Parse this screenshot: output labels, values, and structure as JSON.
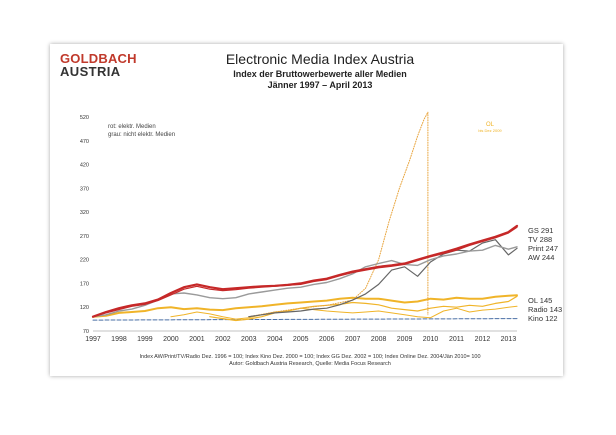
{
  "logo": {
    "line1": "GOLDBACH",
    "line2": "AUSTRIA"
  },
  "header": {
    "title": "Electronic Media Index Austria",
    "subtitle1": "Index der Bruttowerbewerte aller Medien",
    "subtitle2": "Jänner 1997 – April 2013"
  },
  "colors": {
    "elektr_rot": "#c62828",
    "grau": "#9a9a9a",
    "gold": "#f0b429",
    "dark_grey": "#666666",
    "online_dotted": "#e8a43c",
    "dashed_blue": "#4a6fa5"
  },
  "chart_data": {
    "type": "line",
    "title": "Electronic Media Index Austria",
    "x": [
      1997,
      1998,
      1999,
      2000,
      2001,
      2002,
      2003,
      2004,
      2005,
      2006,
      2007,
      2008,
      2009,
      2010,
      2011,
      2012,
      2013
    ],
    "x_labels": [
      "1997",
      "1998",
      "1999",
      "2000",
      "2001",
      "2002",
      "2003",
      "2004",
      "2005",
      "2006",
      "2007",
      "2008",
      "2009",
      "2010",
      "2011",
      "2012",
      "2013"
    ],
    "y_ticks": [
      70,
      120,
      170,
      220,
      270,
      320,
      370,
      420,
      470,
      520
    ],
    "ylim": [
      70,
      520
    ],
    "xlim": [
      1997,
      2013.33
    ],
    "legend_notes": [
      "rot: elektr. Medien",
      "grau: nicht elektr. Medien"
    ],
    "ol_annotation": {
      "label": "OL",
      "sublabel": "bis Dez 2009"
    },
    "series": [
      {
        "name": "GS",
        "end_label": "GS 291",
        "color_key": "elektr_rot",
        "style": "solid",
        "width": 2.2,
        "x": [
          1997,
          1997.5,
          1998,
          1998.5,
          1999,
          1999.5,
          2000,
          2000.5,
          2001,
          2001.5,
          2002,
          2002.5,
          2003,
          2003.5,
          2004,
          2004.5,
          2005,
          2005.5,
          2006,
          2006.5,
          2007,
          2007.5,
          2008,
          2008.5,
          2009,
          2009.5,
          2010,
          2010.5,
          2011,
          2011.5,
          2012,
          2012.5,
          2013,
          2013.33
        ],
        "y": [
          100,
          110,
          118,
          124,
          128,
          136,
          150,
          162,
          168,
          162,
          158,
          160,
          162,
          164,
          165,
          167,
          170,
          176,
          180,
          188,
          195,
          200,
          205,
          208,
          212,
          220,
          228,
          235,
          243,
          252,
          260,
          268,
          278,
          291
        ]
      },
      {
        "name": "TV",
        "end_label": "TV 288",
        "color_key": "elektr_rot",
        "style": "solid",
        "width": 1.2,
        "x": [
          1997,
          1997.5,
          1998,
          1998.5,
          1999,
          1999.5,
          2000,
          2000.5,
          2001,
          2001.5,
          2002,
          2002.5,
          2003,
          2003.5,
          2004,
          2004.5,
          2005,
          2005.5,
          2006,
          2006.5,
          2007,
          2007.5,
          2008,
          2008.5,
          2009,
          2009.5,
          2010,
          2010.5,
          2011,
          2011.5,
          2012,
          2012.5,
          2013,
          2013.33
        ],
        "y": [
          100,
          108,
          115,
          122,
          126,
          134,
          146,
          158,
          164,
          158,
          155,
          157,
          160,
          162,
          164,
          166,
          168,
          174,
          178,
          186,
          193,
          198,
          203,
          206,
          210,
          218,
          226,
          233,
          240,
          250,
          258,
          266,
          276,
          288
        ]
      },
      {
        "name": "Print",
        "end_label": "Print 247",
        "color_key": "grau",
        "style": "solid",
        "width": 1.4,
        "x": [
          1997,
          1997.5,
          1998,
          1998.5,
          1999,
          1999.5,
          2000,
          2000.5,
          2001,
          2001.5,
          2002,
          2002.5,
          2003,
          2003.5,
          2004,
          2004.5,
          2005,
          2005.5,
          2006,
          2006.5,
          2007,
          2007.5,
          2008,
          2008.5,
          2009,
          2009.5,
          2010,
          2010.5,
          2011,
          2011.5,
          2012,
          2012.5,
          2013,
          2013.33
        ],
        "y": [
          100,
          104,
          112,
          116,
          124,
          135,
          148,
          150,
          146,
          140,
          138,
          140,
          148,
          152,
          156,
          160,
          162,
          168,
          172,
          180,
          190,
          205,
          212,
          218,
          210,
          208,
          220,
          228,
          232,
          238,
          240,
          250,
          242,
          247
        ]
      },
      {
        "name": "AW",
        "end_label": "AW 244",
        "color_key": "dark_grey",
        "style": "solid",
        "width": 1.2,
        "x": [
          2003,
          2003.5,
          2004,
          2004.5,
          2005,
          2005.5,
          2006,
          2006.5,
          2007,
          2007.5,
          2008,
          2008.5,
          2009,
          2009.5,
          2010,
          2010.5,
          2011,
          2011.5,
          2012,
          2012.5,
          2013,
          2013.33
        ],
        "y": [
          100,
          104,
          108,
          110,
          112,
          116,
          118,
          125,
          135,
          148,
          168,
          198,
          205,
          185,
          215,
          232,
          240,
          238,
          255,
          262,
          230,
          244
        ]
      },
      {
        "name": "OL",
        "end_label": "OL 145",
        "color_key": "gold",
        "style": "solid",
        "width": 2.0,
        "x": [
          1997,
          1997.5,
          1998,
          1998.5,
          1999,
          1999.5,
          2000,
          2000.5,
          2001,
          2001.5,
          2002,
          2002.5,
          2003,
          2003.5,
          2004,
          2004.5,
          2005,
          2005.5,
          2006,
          2006.5,
          2007,
          2007.5,
          2008,
          2008.5,
          2009,
          2009.5,
          2010,
          2010.5,
          2011,
          2011.5,
          2012,
          2012.5,
          2013,
          2013.33
        ],
        "y": [
          100,
          102,
          108,
          110,
          112,
          118,
          120,
          116,
          118,
          115,
          114,
          118,
          120,
          122,
          125,
          128,
          130,
          132,
          134,
          138,
          140,
          138,
          138,
          134,
          130,
          132,
          138,
          136,
          140,
          138,
          138,
          142,
          144,
          145
        ]
      },
      {
        "name": "Radio",
        "end_label": "Radio 143",
        "color_key": "gold",
        "style": "solid",
        "width": 1.2,
        "x": [
          2001.5,
          2002,
          2002.5,
          2003,
          2003.5,
          2004,
          2004.5,
          2005,
          2005.5,
          2006,
          2006.5,
          2007,
          2007.5,
          2008,
          2008.5,
          2009,
          2009.5,
          2010,
          2010.5,
          2011,
          2011.5,
          2012,
          2012.5,
          2013,
          2013.33
        ],
        "y": [
          100,
          96,
          92,
          95,
          100,
          108,
          112,
          118,
          122,
          124,
          126,
          130,
          128,
          125,
          118,
          115,
          112,
          118,
          122,
          120,
          124,
          122,
          128,
          132,
          143
        ]
      },
      {
        "name": "Kino",
        "end_label": "Kino 122",
        "color_key": "gold",
        "style": "solid",
        "width": 1.0,
        "x": [
          2000,
          2000.5,
          2001,
          2001.5,
          2002,
          2002.5,
          2003,
          2003.5,
          2004,
          2004.5,
          2005,
          2005.5,
          2006,
          2006.5,
          2007,
          2007.5,
          2008,
          2008.5,
          2009,
          2009.5,
          2010,
          2010.5,
          2011,
          2011.5,
          2012,
          2012.5,
          2013,
          2013.33
        ],
        "y": [
          100,
          104,
          110,
          106,
          100,
          95,
          98,
          104,
          110,
          112,
          118,
          115,
          112,
          110,
          108,
          110,
          112,
          108,
          104,
          100,
          98,
          112,
          118,
          110,
          114,
          116,
          120,
          122
        ]
      },
      {
        "name": "Online",
        "color_key": "online_dotted",
        "style": "dotted",
        "width": 1.0,
        "x": [
          2003,
          2004,
          2005,
          2006,
          2007,
          2007.5,
          2008,
          2008.4,
          2008.8,
          2009.2,
          2009.5,
          2009.75,
          2009.9
        ],
        "y": [
          100,
          110,
          118,
          124,
          135,
          160,
          220,
          300,
          370,
          430,
          480,
          515,
          530
        ]
      },
      {
        "name": "Online-Drop",
        "color_key": "online_dotted",
        "style": "dotted",
        "width": 1.0,
        "x": [
          2009.9,
          2009.9
        ],
        "y": [
          530,
          104
        ]
      },
      {
        "name": "Baseline",
        "color_key": "dashed_blue",
        "style": "dashed",
        "width": 1.0,
        "x": [
          1997,
          2013.33
        ],
        "y": [
          93,
          96
        ]
      }
    ]
  },
  "footnotes": {
    "line1": "Index AW/Print/TV/Radio Dez. 1996 = 100; Index Kino Dez. 2000 = 100; Index GG Dez. 2002 = 100; Index Online Dez. 2004/Jän 2010= 100",
    "line2": "Autor: Goldbach Austria Research, Quelle: Media Focus Research"
  }
}
